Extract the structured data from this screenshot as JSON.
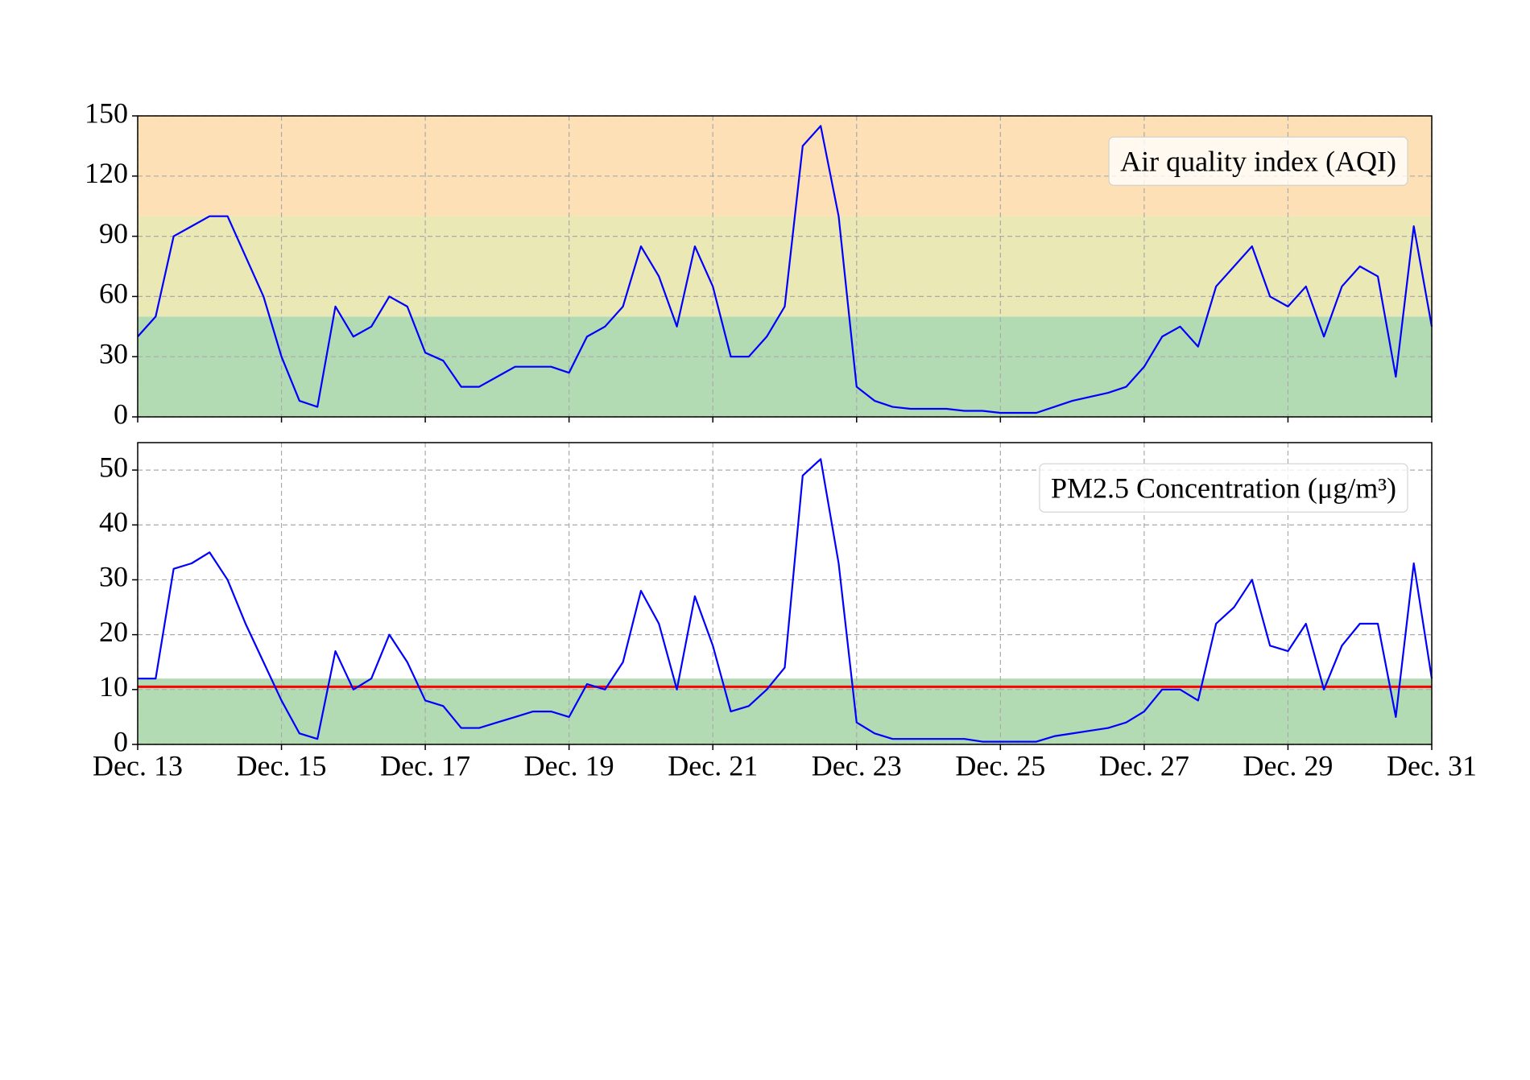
{
  "chart_data": [
    {
      "type": "line",
      "title": "Air quality index (AQI)",
      "x": [
        13,
        13.25,
        13.5,
        13.75,
        14,
        14.25,
        14.5,
        14.75,
        15,
        15.25,
        15.5,
        15.75,
        16,
        16.25,
        16.5,
        16.75,
        17,
        17.25,
        17.5,
        17.75,
        18,
        18.25,
        18.5,
        18.75,
        19,
        19.25,
        19.5,
        19.75,
        20,
        20.25,
        20.5,
        20.75,
        21,
        21.25,
        21.5,
        21.75,
        22,
        22.25,
        22.5,
        22.75,
        23,
        23.25,
        23.5,
        23.75,
        24,
        24.25,
        24.5,
        24.75,
        25,
        25.25,
        25.5,
        25.75,
        26,
        26.25,
        26.5,
        26.75,
        27,
        27.25,
        27.5,
        27.75,
        28,
        28.25,
        28.5,
        28.75,
        29,
        29.25,
        29.5,
        29.75,
        30,
        30.25,
        30.5,
        30.75,
        31
      ],
      "values": [
        40,
        50,
        90,
        95,
        100,
        100,
        80,
        60,
        30,
        8,
        5,
        55,
        40,
        45,
        60,
        55,
        32,
        28,
        15,
        15,
        20,
        25,
        25,
        25,
        22,
        40,
        45,
        55,
        85,
        70,
        45,
        85,
        65,
        30,
        30,
        40,
        55,
        135,
        145,
        100,
        15,
        8,
        5,
        4,
        4,
        4,
        3,
        3,
        2,
        2,
        2,
        5,
        8,
        10,
        12,
        15,
        25,
        40,
        45,
        35,
        65,
        75,
        85,
        60,
        55,
        65,
        40,
        65,
        75,
        70,
        20,
        95,
        45
      ],
      "color": "#0000ff",
      "bands": [
        {
          "from": 0,
          "to": 50,
          "color": "#b3dbb3"
        },
        {
          "from": 50,
          "to": 100,
          "color": "#eae8b5"
        },
        {
          "from": 100,
          "to": 150,
          "color": "#fde0b5"
        }
      ],
      "xlim": [
        13,
        31
      ],
      "xticks": [
        13,
        15,
        17,
        19,
        21,
        23,
        25,
        27,
        29,
        31
      ],
      "ylim": [
        0,
        150
      ],
      "yticks": [
        0,
        30,
        60,
        90,
        120,
        150
      ],
      "grid": true
    },
    {
      "type": "line",
      "title": "PM2.5 Concentration (μg/m³)",
      "x": [
        13,
        13.25,
        13.5,
        13.75,
        14,
        14.25,
        14.5,
        14.75,
        15,
        15.25,
        15.5,
        15.75,
        16,
        16.25,
        16.5,
        16.75,
        17,
        17.25,
        17.5,
        17.75,
        18,
        18.25,
        18.5,
        18.75,
        19,
        19.25,
        19.5,
        19.75,
        20,
        20.25,
        20.5,
        20.75,
        21,
        21.25,
        21.5,
        21.75,
        22,
        22.25,
        22.5,
        22.75,
        23,
        23.25,
        23.5,
        23.75,
        24,
        24.25,
        24.5,
        24.75,
        25,
        25.25,
        25.5,
        25.75,
        26,
        26.25,
        26.5,
        26.75,
        27,
        27.25,
        27.5,
        27.75,
        28,
        28.25,
        28.5,
        28.75,
        29,
        29.25,
        29.5,
        29.75,
        30,
        30.25,
        30.5,
        30.75,
        31
      ],
      "values": [
        12,
        12,
        32,
        33,
        35,
        30,
        22,
        15,
        8,
        2,
        1,
        17,
        10,
        12,
        20,
        15,
        8,
        7,
        3,
        3,
        4,
        5,
        6,
        6,
        5,
        11,
        10,
        15,
        28,
        22,
        10,
        27,
        18,
        6,
        7,
        10,
        14,
        49,
        52,
        33,
        4,
        2,
        1,
        1,
        1,
        1,
        1,
        0.5,
        0.5,
        0.5,
        0.5,
        1.5,
        2,
        2.5,
        3,
        4,
        6,
        10,
        10,
        8,
        22,
        25,
        30,
        18,
        17,
        22,
        10,
        18,
        22,
        22,
        5,
        33,
        12
      ],
      "color": "#0000ff",
      "bands": [
        {
          "from": 0,
          "to": 12,
          "color": "#b3dbb3"
        }
      ],
      "threshold": 10.5,
      "threshold_color": "#ff0000",
      "xlim": [
        13,
        31
      ],
      "xticks": [
        {
          "value": 13,
          "label": "Dec. 13"
        },
        {
          "value": 15,
          "label": "Dec. 15"
        },
        {
          "value": 17,
          "label": "Dec. 17"
        },
        {
          "value": 19,
          "label": "Dec. 19"
        },
        {
          "value": 21,
          "label": "Dec. 21"
        },
        {
          "value": 23,
          "label": "Dec. 23"
        },
        {
          "value": 25,
          "label": "Dec. 25"
        },
        {
          "value": 27,
          "label": "Dec. 27"
        },
        {
          "value": 29,
          "label": "Dec. 29"
        },
        {
          "value": 31,
          "label": "Dec. 31"
        }
      ],
      "ylim": [
        0,
        55
      ],
      "yticks": [
        0,
        10,
        20,
        30,
        40,
        50
      ],
      "grid": true
    }
  ]
}
